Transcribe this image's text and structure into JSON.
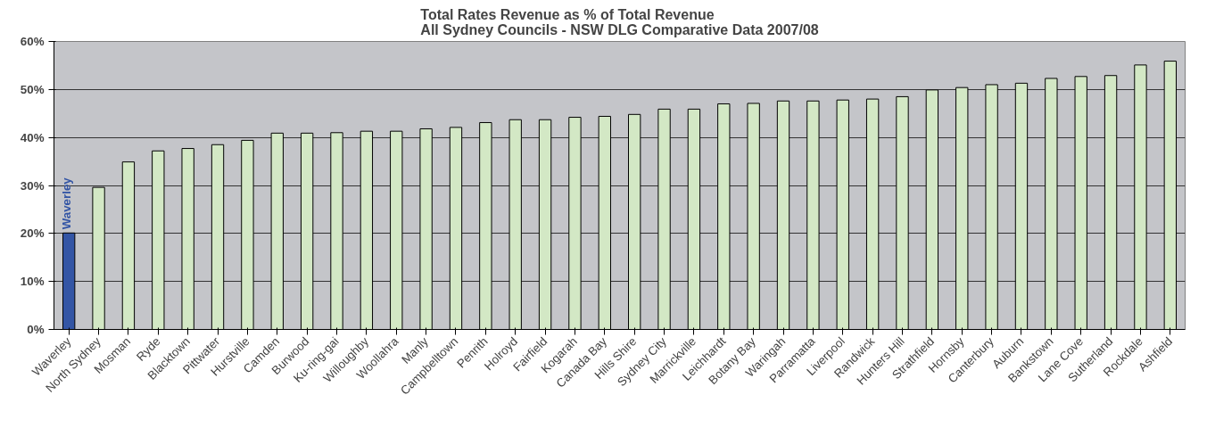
{
  "chart_data": {
    "type": "bar",
    "title": "Total Rates Revenue as % of Total Revenue\nAll Sydney Councils - NSW DLG Comparative Data 2007/08",
    "categories": [
      "Waverley",
      "North Sydney",
      "Mosman",
      "Ryde",
      "Blacktown",
      "Pittwater",
      "Hurstville",
      "Camden",
      "Burwood",
      "Ku-ring-gai",
      "Willoughby",
      "Woollahra",
      "Manly",
      "Campbelltown",
      "Penrith",
      "Holroyd",
      "Fairfield",
      "Kogarah",
      "Canada Bay",
      "Hills Shire",
      "Sydney City",
      "Marrickville",
      "Leichhardt",
      "Botany Bay",
      "Waringah",
      "Parramatta",
      "Liverpool",
      "Randwick",
      "Hunters Hill",
      "Strathfield",
      "Hornsby",
      "Canterbury",
      "Auburn",
      "Bankstown",
      "Lane Cove",
      "Sutherland",
      "Rockdale",
      "Ashfield"
    ],
    "values": [
      20.1,
      29.6,
      34.9,
      37.2,
      37.7,
      38.5,
      39.4,
      40.9,
      40.9,
      41.0,
      41.3,
      41.3,
      41.8,
      42.1,
      43.1,
      43.7,
      43.7,
      44.2,
      44.4,
      44.8,
      45.9,
      45.9,
      47.0,
      47.1,
      47.6,
      47.6,
      47.8,
      48.0,
      48.5,
      49.9,
      50.4,
      51.0,
      51.3,
      52.3,
      52.7,
      52.9,
      55.1,
      55.9
    ],
    "colors": [
      "#3355a5",
      "#d3e8c5",
      "#d3e8c5",
      "#d3e8c5",
      "#d3e8c5",
      "#d3e8c5",
      "#d3e8c5",
      "#d3e8c5",
      "#d3e8c5",
      "#d3e8c5",
      "#d3e8c5",
      "#d3e8c5",
      "#d3e8c5",
      "#d3e8c5",
      "#d3e8c5",
      "#d3e8c5",
      "#d3e8c5",
      "#d3e8c5",
      "#d3e8c5",
      "#d3e8c5",
      "#d3e8c5",
      "#d3e8c5",
      "#d3e8c5",
      "#d3e8c5",
      "#d3e8c5",
      "#d3e8c5",
      "#d3e8c5",
      "#d3e8c5",
      "#d3e8c5",
      "#d3e8c5",
      "#d3e8c5",
      "#d3e8c5",
      "#d3e8c5",
      "#d3e8c5",
      "#d3e8c5",
      "#d3e8c5",
      "#d3e8c5",
      "#d3e8c5"
    ],
    "ylim": [
      0,
      60
    ],
    "yticks": [
      {
        "value": 0,
        "label": "0%"
      },
      {
        "value": 10,
        "label": "10%"
      },
      {
        "value": 20,
        "label": "20%"
      },
      {
        "value": 30,
        "label": "30%"
      },
      {
        "value": 40,
        "label": "40%"
      },
      {
        "value": 50,
        "label": "50%"
      },
      {
        "value": 60,
        "label": "60%"
      }
    ],
    "grid": "y",
    "annotations": [
      {
        "text": "Waverley",
        "x": "Waverley",
        "y": 20.1
      }
    ]
  }
}
